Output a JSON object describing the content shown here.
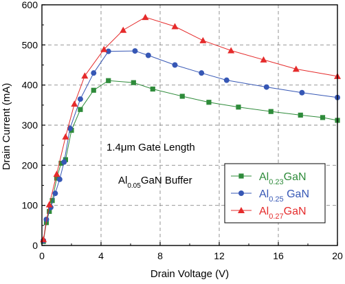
{
  "chart_data": {
    "type": "line",
    "title": "",
    "xlabel": "Drain Voltage (V)",
    "ylabel": "Drain Current (mA)",
    "xlim": [
      0,
      20
    ],
    "ylim": [
      0,
      600
    ],
    "x_ticks": [
      0,
      4,
      8,
      12,
      16,
      20
    ],
    "y_ticks": [
      0,
      100,
      200,
      300,
      400,
      500,
      600
    ],
    "grid": true,
    "legend_position": "lower-right",
    "annotations": [
      {
        "text": "1.4μm Gate Length"
      },
      {
        "parts": [
          {
            "text": "Al",
            "sub": false
          },
          {
            "text": "0.05",
            "sub": true
          },
          {
            "text": "GaN Buffer",
            "sub": false
          }
        ]
      }
    ],
    "series": [
      {
        "name": "Al0.23GaN",
        "name_parts": [
          {
            "text": "Al",
            "sub": false
          },
          {
            "text": "0.23",
            "sub": true
          },
          {
            "text": "GaN",
            "sub": false
          }
        ],
        "color": "#2e8b3a",
        "marker": "square",
        "x": [
          0.1,
          0.3,
          0.5,
          0.7,
          1.0,
          1.3,
          1.6,
          2.0,
          2.6,
          3.5,
          4.5,
          6.2,
          7.5,
          9.5,
          11.3,
          13.3,
          15.5,
          17.5,
          19.0,
          20.0
        ],
        "y": [
          10,
          57,
          85,
          112,
          168,
          205,
          214,
          287,
          339,
          387,
          411,
          406,
          390,
          372,
          357,
          345,
          334,
          325,
          319,
          312
        ]
      },
      {
        "name": "Al0.25 GaN",
        "name_parts": [
          {
            "text": "Al",
            "sub": false
          },
          {
            "text": "0.25",
            "sub": true
          },
          {
            "text": " GaN",
            "sub": false
          }
        ],
        "color": "#3657b5",
        "marker": "circle",
        "x": [
          0.1,
          0.3,
          0.6,
          0.9,
          1.2,
          1.5,
          1.9,
          2.6,
          3.5,
          4.5,
          6.3,
          7.2,
          9.0,
          10.8,
          12.5,
          15.2,
          17.6,
          20.0
        ],
        "y": [
          12,
          65,
          95,
          130,
          165,
          208,
          292,
          365,
          430,
          484,
          485,
          474,
          450,
          430,
          412,
          395,
          381,
          369
        ]
      },
      {
        "name": "Al0.27GaN",
        "name_parts": [
          {
            "text": "Al",
            "sub": false
          },
          {
            "text": "0.27",
            "sub": true
          },
          {
            "text": "GaN",
            "sub": false
          }
        ],
        "color": "#e52b2b",
        "marker": "triangle",
        "x": [
          0.1,
          0.5,
          1.0,
          1.6,
          2.2,
          2.9,
          4.2,
          5.5,
          7.0,
          9.0,
          10.9,
          12.8,
          15.0,
          17.2,
          20.0
        ],
        "y": [
          15,
          102,
          178,
          271,
          353,
          423,
          489,
          537,
          569,
          546,
          511,
          486,
          463,
          440,
          422
        ]
      }
    ]
  }
}
